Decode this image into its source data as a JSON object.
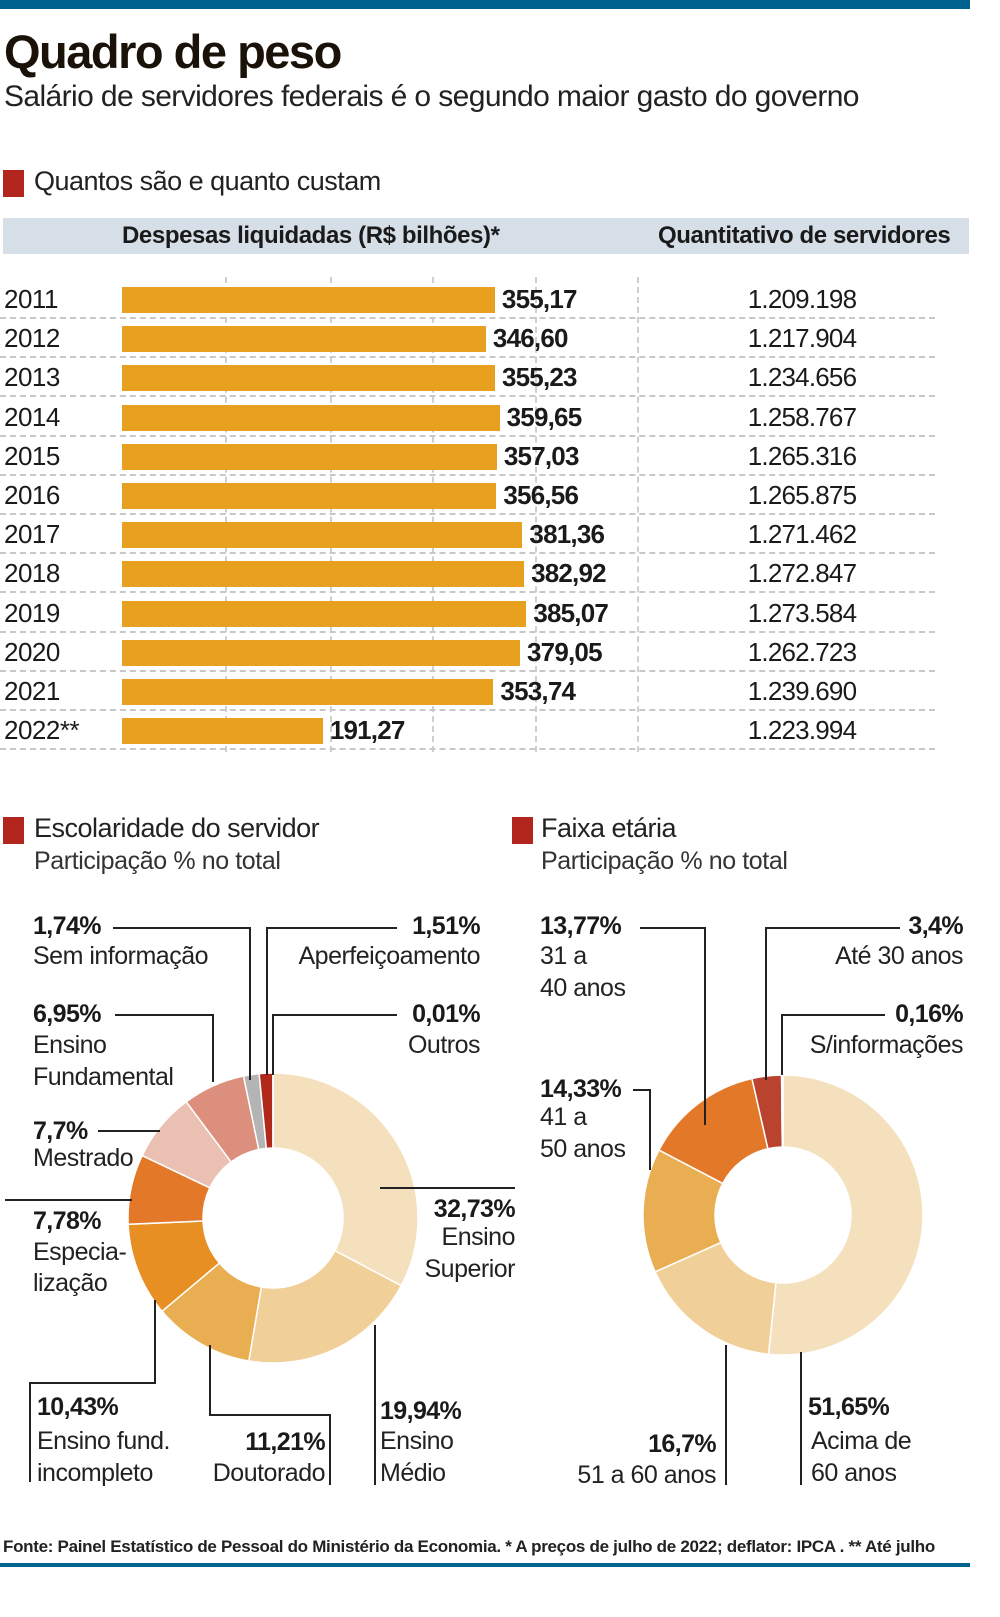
{
  "header": {
    "title": "Quadro de peso",
    "subtitle": "Salário de servidores federais é o segundo maior gasto do governo"
  },
  "colors": {
    "brand_bar": "#00628f",
    "section_marker": "#b3261e",
    "bar": "#e8a11f",
    "header_band": "#d6dfe8"
  },
  "chart_data": [
    {
      "type": "table",
      "title": "Quantos são e quanto custam",
      "columns": [
        "Despesas liquidadas (R$ bilhões)*",
        "Quantitativo de servidores"
      ],
      "categories": [
        "2011",
        "2012",
        "2013",
        "2014",
        "2015",
        "2016",
        "2017",
        "2018",
        "2019",
        "2020",
        "2021",
        "2022**"
      ],
      "series": [
        {
          "name": "Despesas liquidadas (R$ bilhões)*",
          "chart": "bar",
          "values": [
            355.17,
            346.6,
            355.23,
            359.65,
            357.03,
            356.56,
            381.36,
            382.92,
            385.07,
            379.05,
            353.74,
            191.27
          ],
          "labels": [
            "355,17",
            "346,60",
            "355,23",
            "359,65",
            "357,03",
            "356,56",
            "381,36",
            "382,92",
            "385,07",
            "379,05",
            "353,74",
            "191,27"
          ]
        },
        {
          "name": "Quantitativo de servidores",
          "values": [
            1209198,
            1217904,
            1234656,
            1258767,
            1265316,
            1265875,
            1271462,
            1272847,
            1273584,
            1262723,
            1239690,
            1223994
          ],
          "labels": [
            "1.209.198",
            "1.217.904",
            "1.234.656",
            "1.258.767",
            "1.265.316",
            "1.265.875",
            "1.271.462",
            "1.272.847",
            "1.273.584",
            "1.262.723",
            "1.239.690",
            "1.223.994"
          ]
        }
      ]
    },
    {
      "type": "pie",
      "donut": true,
      "title": "Escolaridade do servidor",
      "subtitle": "Participação % no total",
      "slices": [
        {
          "label": "Ensino Superior",
          "lines": [
            "Ensino",
            "Superior"
          ],
          "value": 32.73,
          "text": "32,73%",
          "color": "#f5e0bd"
        },
        {
          "label": "Ensino Médio",
          "lines": [
            "Ensino",
            "Médio"
          ],
          "value": 19.94,
          "text": "19,94%",
          "color": "#f0cf98"
        },
        {
          "label": "Doutorado",
          "lines": [
            "Doutorado"
          ],
          "value": 11.21,
          "text": "11,21%",
          "color": "#eaae52"
        },
        {
          "label": "Ensino fund. incompleto",
          "lines": [
            "Ensino fund.",
            "incompleto"
          ],
          "value": 10.43,
          "text": "10,43%",
          "color": "#e78f22"
        },
        {
          "label": "Especialização",
          "lines": [
            "Especia-",
            "lização"
          ],
          "value": 7.78,
          "text": "7,78%",
          "color": "#e27828"
        },
        {
          "label": "Mestrado",
          "lines": [
            "Mestrado"
          ],
          "value": 7.7,
          "text": "7,7%",
          "color": "#eac0b2"
        },
        {
          "label": "Ensino Fundamental",
          "lines": [
            "Ensino",
            "Fundamental"
          ],
          "value": 6.95,
          "text": "6,95%",
          "color": "#db8f7c"
        },
        {
          "label": "Sem informação",
          "lines": [
            "Sem informação"
          ],
          "value": 1.74,
          "text": "1,74%",
          "color": "#b4b4b4"
        },
        {
          "label": "Aperfeiçoamento",
          "lines": [
            "Aperfeiçoamento"
          ],
          "value": 1.51,
          "text": "1,51%",
          "color": "#b0291a"
        },
        {
          "label": "Outros",
          "lines": [
            "Outros"
          ],
          "value": 0.01,
          "text": "0,01%",
          "color": "#8a1a10"
        }
      ]
    },
    {
      "type": "pie",
      "donut": true,
      "title": "Faixa etária",
      "subtitle": "Participação % no total",
      "slices": [
        {
          "label": "Acima de 60 anos",
          "lines": [
            "Acima de",
            "60 anos"
          ],
          "value": 51.65,
          "text": "51,65%",
          "color": "#f5e0bd"
        },
        {
          "label": "51 a 60 anos",
          "lines": [
            "51 a 60 anos"
          ],
          "value": 16.7,
          "text": "16,7%",
          "color": "#f0cf98"
        },
        {
          "label": "41 a 50 anos",
          "lines": [
            "41 a",
            "50 anos"
          ],
          "value": 14.33,
          "text": "14,33%",
          "color": "#eaae52"
        },
        {
          "label": "31 a 40 anos",
          "lines": [
            "31 a",
            "40 anos"
          ],
          "value": 13.77,
          "text": "13,77%",
          "color": "#e27828"
        },
        {
          "label": "Até 30 anos",
          "lines": [
            "Até 30 anos"
          ],
          "value": 3.4,
          "text": "3,4%",
          "color": "#b9432e"
        },
        {
          "label": "S/informações",
          "lines": [
            "S/informações"
          ],
          "value": 0.16,
          "text": "0,16%",
          "color": "#8a1a10"
        }
      ]
    }
  ],
  "footer": "Fonte: Painel Estatístico de Pessoal do Ministério da Economia. * A preços de julho de 2022; deflator: IPCA . ** Até julho"
}
